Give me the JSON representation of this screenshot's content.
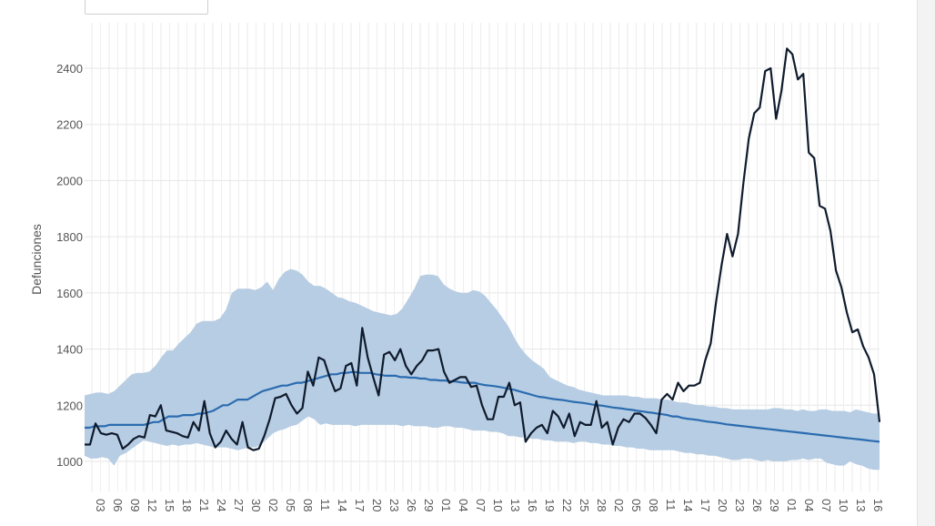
{
  "chart_data": {
    "type": "line",
    "title": "",
    "xlabel": "",
    "ylabel": "Defunciones",
    "ylim": [
      960,
      2520
    ],
    "yticks": [
      1000,
      1200,
      1400,
      1600,
      1800,
      2000,
      2200,
      2400
    ],
    "grid": true,
    "xtick_labels": [
      "03",
      "06",
      "09",
      "12",
      "15",
      "18",
      "21",
      "24",
      "27",
      "30",
      "02",
      "05",
      "08",
      "11",
      "14",
      "17",
      "20",
      "23",
      "26",
      "29",
      "01",
      "04",
      "07",
      "10",
      "13",
      "16",
      "19",
      "22",
      "25",
      "28",
      "02",
      "05",
      "08",
      "11",
      "14",
      "17",
      "20",
      "23",
      "26",
      "29",
      "01",
      "04",
      "07",
      "10",
      "13",
      "16"
    ],
    "series": [
      {
        "kind": "band",
        "color": "#b7cde3",
        "lower": [
          1020,
          1010,
          1010,
          1015,
          1010,
          985,
          1020,
          1030,
          1045,
          1060,
          1075,
          1070,
          1065,
          1060,
          1055,
          1060,
          1055,
          1060,
          1060,
          1065,
          1060,
          1055,
          1050,
          1050,
          1050,
          1045,
          1040,
          1045,
          1050,
          1050,
          1060,
          1080,
          1100,
          1110,
          1115,
          1125,
          1130,
          1145,
          1160,
          1150,
          1130,
          1135,
          1130,
          1130,
          1130,
          1130,
          1125,
          1130,
          1130,
          1130,
          1130,
          1130,
          1130,
          1130,
          1125,
          1130,
          1125,
          1125,
          1125,
          1120,
          1120,
          1125,
          1125,
          1120,
          1120,
          1115,
          1110,
          1110,
          1110,
          1105,
          1105,
          1100,
          1090,
          1090,
          1085,
          1085,
          1080,
          1080,
          1075,
          1075,
          1070,
          1070,
          1070,
          1065,
          1070,
          1070,
          1065,
          1065,
          1060,
          1060,
          1055,
          1055,
          1050,
          1050,
          1045,
          1045,
          1040,
          1040,
          1040,
          1040,
          1040,
          1035,
          1030,
          1030,
          1025,
          1025,
          1020,
          1020,
          1015,
          1010,
          1005,
          1005,
          1010,
          1010,
          1005,
          1000,
          1005,
          1000,
          1000,
          1000,
          1005,
          1005,
          1010,
          1005,
          1010,
          1010,
          995,
          990,
          985,
          985,
          1000,
          990,
          985,
          975,
          970,
          970
        ],
        "upper": [
          1235,
          1240,
          1245,
          1245,
          1240,
          1250,
          1270,
          1290,
          1310,
          1315,
          1315,
          1320,
          1340,
          1370,
          1395,
          1395,
          1420,
          1440,
          1460,
          1490,
          1500,
          1500,
          1500,
          1510,
          1540,
          1600,
          1615,
          1615,
          1615,
          1610,
          1620,
          1640,
          1610,
          1650,
          1675,
          1685,
          1680,
          1665,
          1640,
          1625,
          1625,
          1615,
          1600,
          1585,
          1580,
          1570,
          1565,
          1555,
          1545,
          1535,
          1530,
          1525,
          1520,
          1525,
          1545,
          1580,
          1615,
          1660,
          1665,
          1665,
          1660,
          1630,
          1615,
          1605,
          1600,
          1600,
          1610,
          1605,
          1590,
          1565,
          1540,
          1510,
          1480,
          1440,
          1405,
          1380,
          1360,
          1345,
          1330,
          1300,
          1290,
          1280,
          1270,
          1265,
          1255,
          1250,
          1245,
          1240,
          1235,
          1235,
          1235,
          1235,
          1235,
          1230,
          1230,
          1225,
          1225,
          1225,
          1220,
          1220,
          1215,
          1210,
          1210,
          1205,
          1200,
          1200,
          1195,
          1195,
          1190,
          1190,
          1185,
          1185,
          1185,
          1185,
          1185,
          1185,
          1185,
          1190,
          1190,
          1185,
          1185,
          1180,
          1185,
          1180,
          1180,
          1185,
          1185,
          1180,
          1180,
          1180,
          1175,
          1185,
          1180,
          1175,
          1170,
          1170
        ]
      },
      {
        "kind": "line",
        "color": "#2b6cb0",
        "values": [
          1120,
          1120,
          1125,
          1125,
          1125,
          1130,
          1130,
          1130,
          1130,
          1130,
          1130,
          1130,
          1130,
          1135,
          1140,
          1140,
          1150,
          1160,
          1160,
          1160,
          1165,
          1165,
          1165,
          1170,
          1170,
          1175,
          1180,
          1190,
          1200,
          1200,
          1210,
          1220,
          1220,
          1220,
          1230,
          1240,
          1250,
          1255,
          1260,
          1265,
          1270,
          1270,
          1275,
          1280,
          1280,
          1285,
          1290,
          1295,
          1300,
          1305,
          1310,
          1310,
          1315,
          1315,
          1318,
          1318,
          1315,
          1315,
          1315,
          1310,
          1308,
          1305,
          1305,
          1305,
          1300,
          1300,
          1298,
          1298,
          1295,
          1295,
          1290,
          1290,
          1288,
          1288,
          1285,
          1285,
          1282,
          1280,
          1280,
          1280,
          1275,
          1272,
          1270,
          1268,
          1265,
          1262,
          1258,
          1255,
          1250,
          1245,
          1240,
          1235,
          1230,
          1228,
          1225,
          1222,
          1220,
          1218,
          1215,
          1212,
          1210,
          1208,
          1205,
          1202,
          1200,
          1198,
          1195,
          1192,
          1190,
          1188,
          1185,
          1183,
          1180,
          1178,
          1175,
          1173,
          1170,
          1168,
          1165,
          1160,
          1160,
          1155,
          1152,
          1150,
          1148,
          1145,
          1142,
          1140,
          1138,
          1135,
          1132,
          1130,
          1128,
          1126,
          1124,
          1122,
          1120,
          1118,
          1116,
          1114,
          1112,
          1110,
          1108,
          1106,
          1104,
          1102,
          1100,
          1098,
          1096,
          1094,
          1092,
          1090,
          1088,
          1086,
          1084,
          1082,
          1080,
          1078,
          1076,
          1074,
          1072,
          1070
        ]
      },
      {
        "kind": "line",
        "color": "#0f1b2d",
        "values": [
          1060,
          1060,
          1135,
          1100,
          1095,
          1100,
          1095,
          1045,
          1060,
          1080,
          1090,
          1085,
          1165,
          1160,
          1200,
          1110,
          1105,
          1100,
          1090,
          1085,
          1140,
          1110,
          1215,
          1100,
          1050,
          1070,
          1110,
          1080,
          1060,
          1140,
          1050,
          1040,
          1045,
          1090,
          1150,
          1225,
          1230,
          1240,
          1200,
          1170,
          1190,
          1320,
          1270,
          1370,
          1360,
          1300,
          1250,
          1260,
          1340,
          1350,
          1270,
          1475,
          1370,
          1300,
          1235,
          1380,
          1390,
          1360,
          1400,
          1340,
          1310,
          1340,
          1360,
          1395,
          1395,
          1400,
          1320,
          1280,
          1290,
          1300,
          1300,
          1265,
          1270,
          1200,
          1150,
          1150,
          1230,
          1230,
          1280,
          1200,
          1210,
          1070,
          1100,
          1120,
          1130,
          1100,
          1180,
          1160,
          1120,
          1170,
          1090,
          1140,
          1130,
          1130,
          1215,
          1120,
          1140,
          1060,
          1120,
          1150,
          1140,
          1170,
          1170,
          1155,
          1130,
          1100,
          1220,
          1240,
          1220,
          1280,
          1250,
          1270,
          1270,
          1280,
          1360,
          1420,
          1570,
          1700,
          1810,
          1730,
          1810,
          1990,
          2150,
          2240,
          2260,
          2390,
          2400,
          2220,
          2320,
          2470,
          2450,
          2360,
          2380,
          2100,
          2080,
          1910,
          1900,
          1820,
          1680,
          1620,
          1530,
          1460,
          1470,
          1410,
          1370,
          1310,
          1140
        ]
      }
    ]
  }
}
